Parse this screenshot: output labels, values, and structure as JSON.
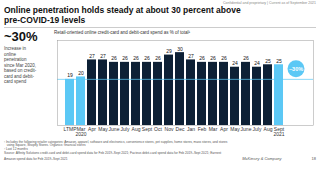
{
  "chart_data": {
    "type": "bar",
    "title": "Online penetration holds steady at about 30 percent above\npre-COVID-19 levels",
    "subtitle": "Retail-oriented online credit-card and debit-card spend as % of total¹",
    "watermark": "Confidential and proprietary  |  Current as of September 2021",
    "big_label": "~30%",
    "big_label_sub": "Increase in\nonline\npenetration\nsince Mar 2020,\nbased on credit-\ncard and debit-\ncard spend",
    "categories": [
      "LTMP",
      "Mar\n2020",
      "Apr",
      "May",
      "June",
      "July",
      "Aug",
      "Sept",
      "Oct",
      "Nov",
      "Dec",
      "Jan",
      "Feb",
      "Mar",
      "Apr",
      "May",
      "June",
      "July",
      "Aug",
      "Sept\n2021"
    ],
    "values": [
      19,
      20,
      27,
      27,
      26,
      26,
      26,
      26,
      26,
      29,
      30,
      27,
      26,
      26,
      26,
      24,
      26,
      24,
      25,
      25
    ],
    "colors": [
      "#5bc8f5",
      "#5bc8f5",
      "#0d2035",
      "#0d2035",
      "#0d2035",
      "#0d2035",
      "#0d2035",
      "#0d2035",
      "#0d2035",
      "#0d2035",
      "#0d2035",
      "#0d2035",
      "#0d2035",
      "#0d2035",
      "#0d2035",
      "#0d2035",
      "#0d2035",
      "#0d2035",
      "#0d2035",
      "#5bc8f5"
    ],
    "data_labels": true,
    "ref_line": {
      "value": 19,
      "color": "#5bc8f5"
    },
    "annotation": {
      "text": "~30%",
      "color": "#5bc8f5"
    },
    "ylim": [
      0,
      35
    ],
    "yticks": [],
    "tick_labels": "x",
    "grid": false,
    "footnotes": [
      "¹ Includes the following retailer categories: Amazon, apparel, software and electronics, convenience stores, pet supplies, home stores, mass stores, and stores",
      "   using Square, Shopify Stores. Organics: financial stores",
      "² Last 12 months",
      "Source: Affinity Solutions credit-card and debit-card spend data for Feb 2019–Sept 2021; Facteus debit-card spend data for Feb 2019–Sept 2021; Earnest",
      "Amazon spend data for Feb 2019–Sept 2021"
    ],
    "branding": "McKinsey & Company",
    "page": "18"
  }
}
